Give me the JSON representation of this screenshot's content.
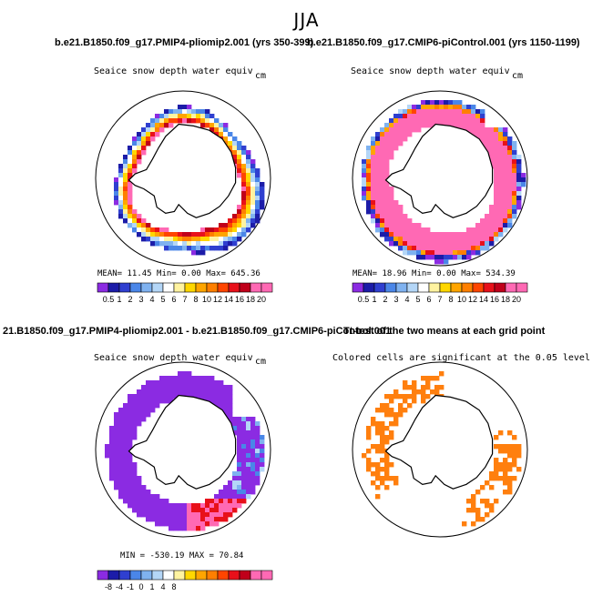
{
  "page_title": "JJA",
  "run_titles": {
    "left": "b.e21.B1850.f09_g17.PMIP4-pliomip2.001 (yrs 350-399)",
    "right": "b.e21.B1850.f09_g17.CMIP6-piControl.001 (yrs 1150-1199)"
  },
  "diff_title": "21.B1850.f09_g17.PMIP4-pliomip2.001 - b.e21.B1850.f09_g17.CMIP6-piControl.001",
  "ttest_title": "Tt-test of the two means at each grid point",
  "colors": {
    "palette": [
      "#8b2be2",
      "#1c1ca8",
      "#2f3fd0",
      "#4a86e8",
      "#7fb2f0",
      "#b4d6f7",
      "#ffffff",
      "#fff3a0",
      "#ffd700",
      "#ffa500",
      "#ff7f00",
      "#ff4500",
      "#e8101a",
      "#c0001a",
      "#ff69b4"
    ],
    "significant": "#ff7f0e",
    "land_outline": "#000000"
  },
  "chart_data": [
    {
      "type": "heatmap",
      "title": "Seaice snow depth water equiv",
      "units": "cm",
      "stats": "MEAN=  11.45  Min=   0.00  Max= 645.36",
      "colorbar_labels": [
        "0.5",
        "1",
        "2",
        "3",
        "4",
        "5",
        "6",
        "7",
        "8",
        "10",
        "12",
        "14",
        "16",
        "18",
        "20"
      ]
    },
    {
      "type": "heatmap",
      "title": "Seaice snow depth water equiv",
      "units": "cm",
      "stats": "MEAN=  18.96  Min=   0.00  Max= 534.39",
      "colorbar_labels": [
        "0.5",
        "1",
        "2",
        "3",
        "4",
        "5",
        "6",
        "7",
        "8",
        "10",
        "12",
        "14",
        "16",
        "18",
        "20"
      ]
    },
    {
      "type": "heatmap",
      "title": "Seaice snow depth water equiv",
      "units": "cm",
      "stats": "MIN = -530.19  MAX =  70.84",
      "colorbar_labels": [
        "-8",
        "-4",
        "-1",
        "0",
        "1",
        "4",
        "8"
      ]
    },
    {
      "type": "heatmap",
      "title": "Colored cells are significant at the 0.05 level",
      "units": "",
      "stats": "",
      "colorbar_labels": []
    }
  ]
}
